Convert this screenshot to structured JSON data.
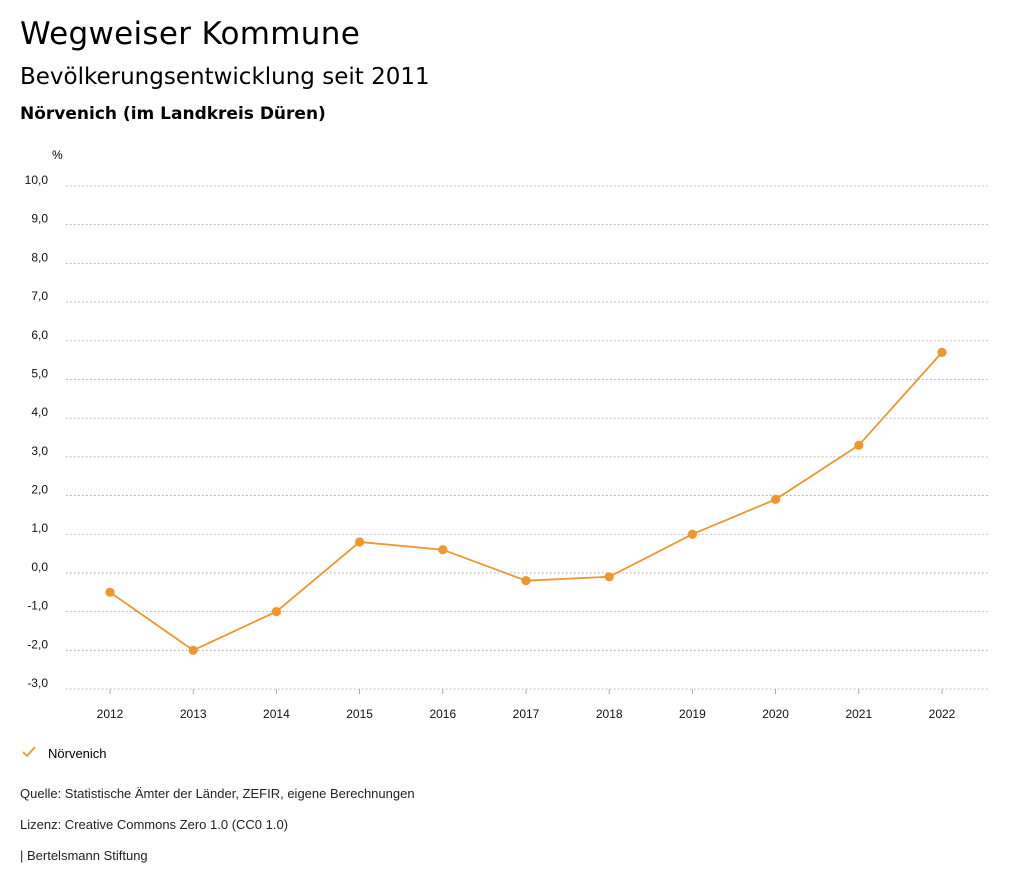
{
  "header": {
    "title": "Wegweiser Kommune",
    "subtitle": "Bevölkerungsentwicklung seit 2011",
    "place": "Nörvenich (im Landkreis Düren)"
  },
  "chart_data": {
    "type": "line",
    "ylabel": "%",
    "x": [
      "2012",
      "2013",
      "2014",
      "2015",
      "2016",
      "2017",
      "2018",
      "2019",
      "2020",
      "2021",
      "2022"
    ],
    "series": [
      {
        "name": "Nörvenich",
        "values": [
          -0.5,
          -2.0,
          -1.0,
          0.8,
          0.6,
          -0.2,
          -0.1,
          1.0,
          1.9,
          3.3,
          5.7
        ]
      }
    ],
    "ylim": [
      -3.0,
      10.0
    ],
    "yticks": [
      "10,0",
      "9,0",
      "8,0",
      "7,0",
      "6,0",
      "5,0",
      "4,0",
      "3,0",
      "2,0",
      "1,0",
      "0,0",
      "-1,0",
      "-2,0",
      "-3,0"
    ],
    "grid": true,
    "legend_position": "bottom-left",
    "color": "#f0962e"
  },
  "legend": {
    "label": "Nörvenich",
    "icon": "check-icon"
  },
  "footer": {
    "source": "Quelle: Statistische Ämter der Länder, ZEFIR, eigene Berechnungen",
    "license": "Lizenz: Creative Commons Zero 1.0 (CC0 1.0)",
    "publisher": "| Bertelsmann Stiftung"
  }
}
